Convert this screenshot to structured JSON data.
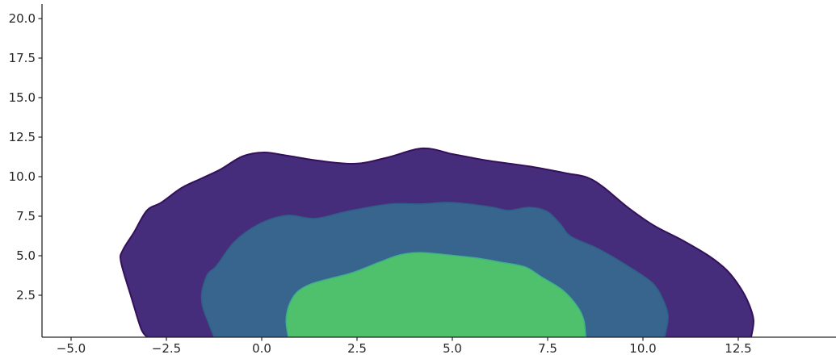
{
  "chart_data": {
    "type": "contour",
    "kind": "bivariate-kde-filled-contour",
    "title": "",
    "xlabel": "",
    "ylabel": "",
    "xlim": [
      -5.8,
      15.1
    ],
    "ylim": [
      -0.15,
      20.9
    ],
    "grid": false,
    "legend": null,
    "x_ticks": [
      {
        "label": "−5.0",
        "value": -5.0
      },
      {
        "label": "−2.5",
        "value": -2.5
      },
      {
        "label": "0.0",
        "value": 0.0
      },
      {
        "label": "2.5",
        "value": 2.5
      },
      {
        "label": "5.0",
        "value": 5.0
      },
      {
        "label": "7.5",
        "value": 7.5
      },
      {
        "label": "10.0",
        "value": 10.0
      },
      {
        "label": "12.5",
        "value": 12.5
      }
    ],
    "y_ticks": [
      {
        "label": "2.5",
        "value": 2.5
      },
      {
        "label": "5.0",
        "value": 5.0
      },
      {
        "label": "7.5",
        "value": 7.5
      },
      {
        "label": "10.0",
        "value": 10.0
      },
      {
        "label": "12.5",
        "value": 12.5
      },
      {
        "label": "15.0",
        "value": 15.0
      },
      {
        "label": "17.5",
        "value": 17.5
      },
      {
        "label": "20.0",
        "value": 20.0
      }
    ],
    "axis_color": "#262626",
    "levels": [
      {
        "name": "outer-density-level",
        "fill": "#462d7c",
        "stroke": "#331058",
        "stroke_width": 2,
        "points": [
          [
            -3.0,
            -0.15
          ],
          [
            -3.16,
            0.36
          ],
          [
            -3.41,
            2.3
          ],
          [
            -3.69,
            4.6
          ],
          [
            -3.64,
            5.36
          ],
          [
            -3.35,
            6.48
          ],
          [
            -3.01,
            7.86
          ],
          [
            -2.63,
            8.37
          ],
          [
            -2.1,
            9.29
          ],
          [
            -1.57,
            9.9
          ],
          [
            -1.08,
            10.46
          ],
          [
            -0.51,
            11.28
          ],
          [
            0.06,
            11.53
          ],
          [
            0.66,
            11.33
          ],
          [
            1.46,
            11.02
          ],
          [
            2.46,
            10.82
          ],
          [
            3.31,
            11.22
          ],
          [
            4.22,
            11.79
          ],
          [
            5.0,
            11.43
          ],
          [
            5.57,
            11.17
          ],
          [
            6.06,
            10.97
          ],
          [
            7.12,
            10.61
          ],
          [
            8.03,
            10.2
          ],
          [
            8.54,
            9.95
          ],
          [
            8.96,
            9.34
          ],
          [
            9.6,
            8.06
          ],
          [
            10.3,
            6.89
          ],
          [
            11.0,
            6.02
          ],
          [
            11.72,
            5.0
          ],
          [
            12.2,
            4.08
          ],
          [
            12.56,
            2.96
          ],
          [
            12.78,
            1.94
          ],
          [
            12.9,
            0.92
          ],
          [
            12.84,
            -0.15
          ]
        ]
      },
      {
        "name": "middle-density-level",
        "fill": "#37658d",
        "stroke": "#2f5f88",
        "stroke_width": 1.5,
        "points": [
          [
            -1.25,
            -0.15
          ],
          [
            -1.4,
            0.77
          ],
          [
            -1.55,
            1.79
          ],
          [
            -1.57,
            2.7
          ],
          [
            -1.42,
            3.83
          ],
          [
            -1.19,
            4.34
          ],
          [
            -0.72,
            5.87
          ],
          [
            -0.08,
            6.99
          ],
          [
            0.66,
            7.55
          ],
          [
            1.4,
            7.35
          ],
          [
            2.25,
            7.81
          ],
          [
            3.37,
            8.27
          ],
          [
            4.15,
            8.27
          ],
          [
            4.85,
            8.37
          ],
          [
            5.42,
            8.27
          ],
          [
            6.06,
            8.06
          ],
          [
            6.48,
            7.86
          ],
          [
            7.01,
            8.06
          ],
          [
            7.48,
            7.81
          ],
          [
            7.82,
            7.04
          ],
          [
            8.11,
            6.22
          ],
          [
            8.81,
            5.46
          ],
          [
            9.51,
            4.49
          ],
          [
            10.23,
            3.32
          ],
          [
            10.51,
            2.3
          ],
          [
            10.66,
            1.17
          ],
          [
            10.57,
            -0.15
          ]
        ]
      },
      {
        "name": "inner-density-level",
        "fill": "#4fc16c",
        "stroke": "#3fb089",
        "stroke_width": 1.5,
        "points": [
          [
            0.7,
            -0.15
          ],
          [
            0.64,
            0.87
          ],
          [
            0.72,
            1.89
          ],
          [
            0.93,
            2.7
          ],
          [
            1.29,
            3.21
          ],
          [
            1.82,
            3.57
          ],
          [
            2.25,
            3.83
          ],
          [
            2.56,
            4.08
          ],
          [
            3.09,
            4.59
          ],
          [
            3.62,
            5.05
          ],
          [
            4.15,
            5.2
          ],
          [
            4.89,
            5.05
          ],
          [
            5.64,
            4.85
          ],
          [
            6.27,
            4.59
          ],
          [
            6.91,
            4.29
          ],
          [
            7.33,
            3.67
          ],
          [
            7.9,
            2.81
          ],
          [
            8.28,
            1.79
          ],
          [
            8.45,
            0.92
          ],
          [
            8.5,
            -0.15
          ]
        ]
      }
    ]
  }
}
